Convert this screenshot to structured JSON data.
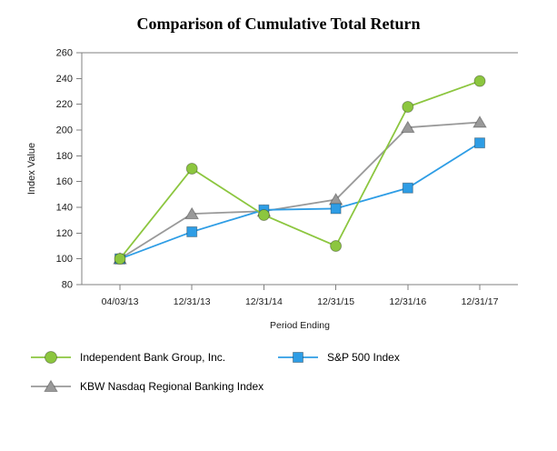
{
  "chart_data": {
    "type": "line",
    "title": "Comparison of Cumulative Total Return",
    "xlabel": "Period Ending",
    "ylabel": "Index Value",
    "categories": [
      "04/03/13",
      "12/31/13",
      "12/31/14",
      "12/31/15",
      "12/31/16",
      "12/31/17"
    ],
    "ylim": [
      80,
      260
    ],
    "ytick_step": 20,
    "grid": false,
    "legend_position": "bottom",
    "axis_color": "#808080",
    "series": [
      {
        "name": "Independent Bank Group, Inc.",
        "marker": "circle",
        "color": "#8CC63F",
        "values": [
          100,
          170,
          134,
          110,
          218,
          238
        ]
      },
      {
        "name": "S&P 500 Index",
        "marker": "square",
        "color": "#2E9DE5",
        "values": [
          100,
          121,
          138,
          139,
          155,
          190
        ]
      },
      {
        "name": "KBW Nasdaq Regional Banking Index",
        "marker": "triangle",
        "color": "#999999",
        "values": [
          100,
          135,
          137,
          146,
          202,
          206
        ]
      }
    ]
  }
}
